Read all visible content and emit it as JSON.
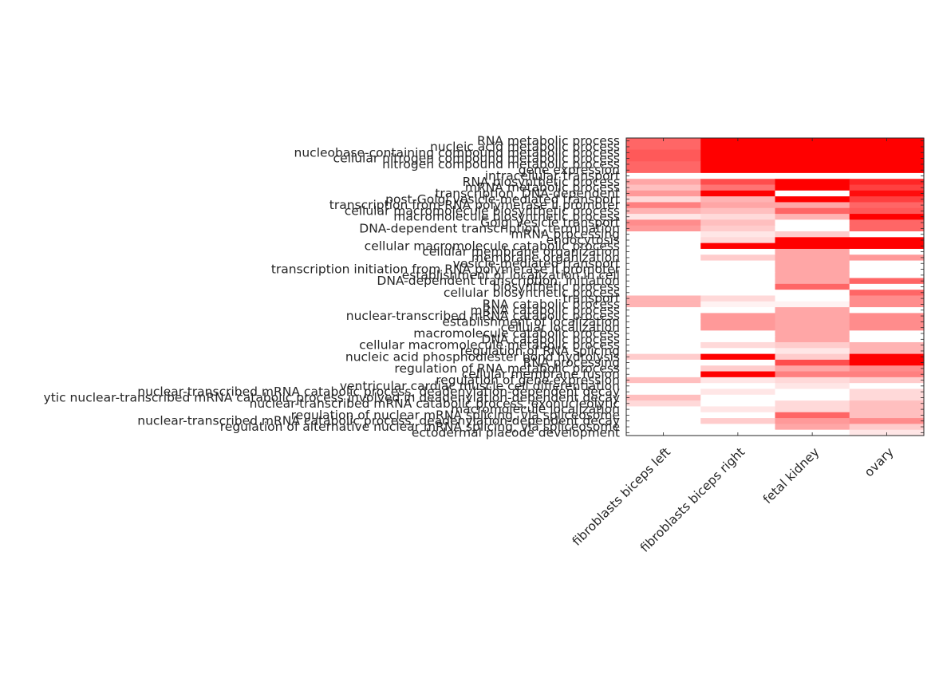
{
  "chart_data": {
    "type": "heatmap",
    "title": "",
    "xlabel": "",
    "ylabel": "",
    "colormap": {
      "low": "#ffffff",
      "high": "#ff0000"
    },
    "vmax": 1,
    "columns": [
      "fibroblasts biceps left",
      "fibroblasts biceps right",
      "fetal kidney",
      "ovary"
    ],
    "rows": [
      "RNA metabolic process",
      "nucleic acid metabolic process",
      "nucleobase-containing compound metabolic process",
      "cellular nitrogen compound metabolic process",
      "nitrogen compound metabolic process",
      "gene expression",
      "intracellular transport",
      "RNA biosynthetic process",
      "mRNA metabolic process",
      "transcription, DNA-dependent",
      "post-Golgi vesicle-mediated transport",
      "transcription from RNA polymerase II promoter",
      "cellular macromolecule biosynthetic process",
      "macromolecule biosynthetic process",
      "Golgi vesicle transport",
      "DNA-dependent transcription, termination",
      "mRNA processing",
      "endocytosis",
      "cellular macromolecule catabolic process",
      "cellular membrane organization",
      "membrane organization",
      "vesicle-mediated transport",
      "transcription initiation from RNA polymerase II promoter",
      "establishment of localization in cell",
      "DNA-dependent transcription, initiation",
      "biosynthetic process",
      "cellular biosynthetic process",
      "transport",
      "RNA catabolic process",
      "mRNA catabolic process",
      "nuclear-transcribed mRNA catabolic process",
      "establishment of localization",
      "cellular localization",
      "macromolecule catabolic process",
      "DNA catabolic process",
      "cellular macromolecule metabolic process",
      "regulation of RNA splicing",
      "nucleic acid phosphodiester bond hydrolysis",
      "RNA processing",
      "regulation of RNA metabolic process",
      "cellular membrane fusion",
      "regulation of gene expression",
      "ventricular cardiac muscle cell differentiation",
      "nuclear-transcribed mRNA catabolic process, deadenylation-dependent decay",
      "ytic nuclear-transcribed mRNA catabolic process involved in deadenylation-dependent decay",
      "nuclear-transcribed mRNA catabolic process, exonucleolytic",
      "macromolecule localization",
      "regulation of nuclear mRNA splicing, via spliceosome",
      "nuclear-transcribed mRNA catabolic process, deadenylation-dependent decay",
      "regulation of alternative nuclear mRNA splicing, via spliceosome",
      "ectodermal placode development"
    ],
    "values": [
      [
        0.6,
        1.0,
        1.0,
        1.0
      ],
      [
        0.6,
        1.0,
        1.0,
        1.0
      ],
      [
        0.65,
        1.0,
        1.0,
        1.0
      ],
      [
        0.65,
        1.0,
        1.0,
        1.0
      ],
      [
        0.6,
        1.0,
        1.0,
        1.0
      ],
      [
        0.6,
        1.0,
        1.0,
        1.0
      ],
      [
        0.0,
        0.0,
        0.0,
        0.0
      ],
      [
        0.35,
        0.7,
        1.0,
        0.85
      ],
      [
        0.25,
        0.55,
        1.0,
        0.75
      ],
      [
        0.4,
        1.0,
        0.0,
        0.95
      ],
      [
        0.15,
        0.3,
        1.0,
        0.75
      ],
      [
        0.5,
        0.35,
        0.35,
        0.6
      ],
      [
        0.3,
        0.25,
        0.6,
        0.65
      ],
      [
        0.1,
        0.15,
        0.3,
        1.0
      ],
      [
        0.45,
        0.25,
        0.0,
        0.6
      ],
      [
        0.4,
        0.2,
        0.0,
        0.6
      ],
      [
        0.0,
        0.1,
        0.2,
        0.0
      ],
      [
        0.0,
        0.15,
        1.0,
        1.0
      ],
      [
        0.0,
        1.0,
        1.0,
        1.0
      ],
      [
        0.0,
        0.0,
        0.35,
        0.0
      ],
      [
        0.0,
        0.2,
        0.35,
        0.4
      ],
      [
        0.0,
        0.0,
        0.35,
        0.0
      ],
      [
        0.0,
        0.0,
        0.35,
        0.0
      ],
      [
        0.0,
        0.0,
        0.35,
        0.0
      ],
      [
        0.0,
        0.0,
        0.35,
        0.6
      ],
      [
        0.0,
        0.0,
        0.6,
        0.0
      ],
      [
        0.0,
        0.0,
        0.0,
        0.6
      ],
      [
        0.3,
        0.15,
        0.0,
        0.45
      ],
      [
        0.3,
        0.05,
        0.05,
        0.45
      ],
      [
        0.0,
        0.0,
        0.35,
        0.0
      ],
      [
        0.0,
        0.4,
        0.35,
        0.45
      ],
      [
        0.0,
        0.4,
        0.35,
        0.45
      ],
      [
        0.0,
        0.4,
        0.35,
        0.45
      ],
      [
        0.0,
        0.0,
        0.35,
        0.0
      ],
      [
        0.0,
        0.0,
        0.35,
        0.0
      ],
      [
        0.0,
        0.15,
        0.2,
        0.3
      ],
      [
        0.0,
        0.0,
        0.1,
        0.3
      ],
      [
        0.2,
        1.0,
        0.2,
        1.0
      ],
      [
        0.0,
        0.0,
        0.7,
        1.0
      ],
      [
        0.0,
        0.2,
        0.35,
        0.45
      ],
      [
        0.0,
        1.0,
        0.5,
        0.5
      ],
      [
        0.25,
        0.1,
        0.15,
        0.2
      ],
      [
        0.0,
        0.0,
        0.1,
        0.0
      ],
      [
        0.0,
        0.1,
        0.0,
        0.15
      ],
      [
        0.25,
        0.0,
        0.0,
        0.15
      ],
      [
        0.15,
        0.0,
        0.15,
        0.25
      ],
      [
        0.0,
        0.1,
        0.15,
        0.25
      ],
      [
        0.0,
        0.0,
        0.6,
        0.25
      ],
      [
        0.0,
        0.2,
        0.4,
        0.45
      ],
      [
        0.0,
        0.0,
        0.35,
        0.2
      ],
      [
        0.0,
        0.0,
        0.0,
        0.1
      ]
    ],
    "grid": false,
    "legend": "none"
  }
}
